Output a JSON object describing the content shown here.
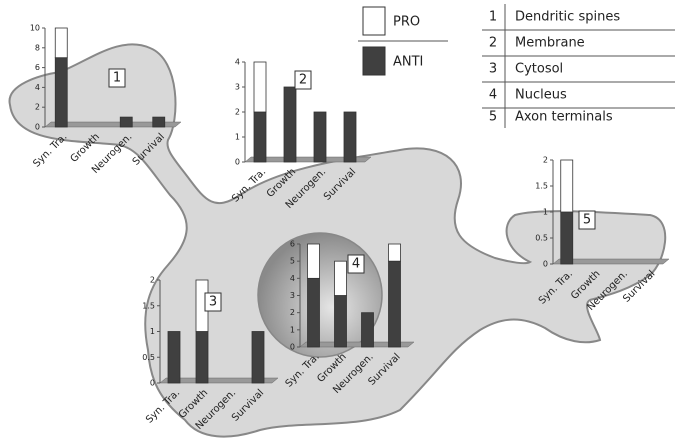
{
  "key": [
    {
      "number": "1",
      "label": "Dendritic spines"
    },
    {
      "number": "2",
      "label": "Membrane"
    },
    {
      "number": "3",
      "label": "Cytosol"
    },
    {
      "number": "4",
      "label": "Nucleus"
    },
    {
      "number": "5",
      "label": "Axon terminals"
    }
  ],
  "chart_data": [
    {
      "type": "bar",
      "stacked": true,
      "categories": [
        "Syn. Tra.",
        "Growth",
        "Neurogen.",
        "Survival"
      ],
      "series": [
        {
          "name": "ANTI",
          "color": "#404040",
          "values": [
            7,
            0,
            1,
            1
          ]
        },
        {
          "name": "PRO",
          "color": "#ffffff",
          "values": [
            3,
            0,
            0,
            0
          ]
        }
      ],
      "ylim": [
        0,
        10
      ],
      "yticks": [
        0,
        2,
        4,
        6,
        8,
        10
      ]
    },
    {
      "type": "bar",
      "stacked": true,
      "categories": [
        "Syn. Tra.",
        "Growth",
        "Neurogen.",
        "Survival"
      ],
      "series": [
        {
          "name": "ANTI",
          "color": "#404040",
          "values": [
            2,
            3,
            2,
            2
          ]
        },
        {
          "name": "PRO",
          "color": "#ffffff",
          "values": [
            2,
            0,
            0,
            0
          ]
        }
      ],
      "ylim": [
        0,
        4
      ],
      "yticks": [
        0,
        1,
        2,
        3,
        4
      ]
    },
    {
      "type": "bar",
      "stacked": true,
      "categories": [
        "Syn. Tra.",
        "Growth",
        "Neurogen.",
        "Survival"
      ],
      "series": [
        {
          "name": "ANTI",
          "color": "#404040",
          "values": [
            1,
            1,
            0,
            1
          ]
        },
        {
          "name": "PRO",
          "color": "#ffffff",
          "values": [
            0,
            1,
            0,
            0
          ]
        }
      ],
      "ylim": [
        0,
        2
      ],
      "yticks": [
        0,
        0.5,
        1,
        1.5,
        2
      ]
    },
    {
      "type": "bar",
      "stacked": true,
      "categories": [
        "Syn. Tra.",
        "Growth",
        "Neurogen.",
        "Survival"
      ],
      "series": [
        {
          "name": "ANTI",
          "color": "#404040",
          "values": [
            4,
            3,
            2,
            5
          ]
        },
        {
          "name": "PRO",
          "color": "#ffffff",
          "values": [
            2,
            2,
            0,
            1
          ]
        }
      ],
      "ylim": [
        0,
        6
      ],
      "yticks": [
        0,
        1,
        2,
        3,
        4,
        5,
        6
      ]
    },
    {
      "type": "bar",
      "stacked": true,
      "categories": [
        "Syn. Tra.",
        "Growth",
        "Neurogen.",
        "Survival"
      ],
      "series": [
        {
          "name": "ANTI",
          "color": "#404040",
          "values": [
            1,
            0,
            0,
            0
          ]
        },
        {
          "name": "PRO",
          "color": "#ffffff",
          "values": [
            1,
            0,
            0,
            0
          ]
        }
      ],
      "ylim": [
        0,
        2
      ],
      "yticks": [
        0,
        0.5,
        1,
        1.5,
        2
      ]
    }
  ]
}
